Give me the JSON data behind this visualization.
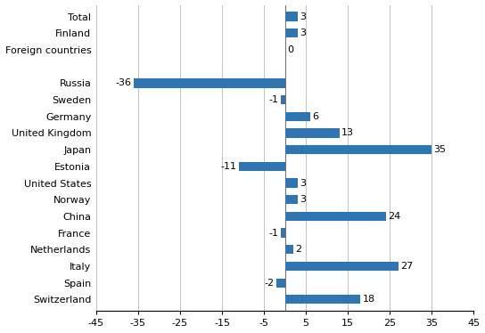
{
  "categories": [
    "Total",
    "Finland",
    "Foreign countries",
    "Russia",
    "Sweden",
    "Germany",
    "United Kingdom",
    "Japan",
    "Estonia",
    "United States",
    "Norway",
    "China",
    "France",
    "Netherlands",
    "Italy",
    "Spain",
    "Switzerland"
  ],
  "values": [
    3,
    3,
    0,
    -36,
    -1,
    6,
    13,
    35,
    -11,
    3,
    3,
    24,
    -1,
    2,
    27,
    -2,
    18
  ],
  "y_positions": [
    16,
    15,
    14,
    12,
    11,
    10,
    9,
    8,
    7,
    6,
    5,
    4,
    3,
    2,
    1,
    0,
    -1
  ],
  "bar_color": "#2E75B6",
  "xlim": [
    -45,
    45
  ],
  "xticks": [
    -45,
    -35,
    -25,
    -15,
    -5,
    5,
    15,
    25,
    35,
    45
  ],
  "xtick_labels": [
    "-45",
    "-35",
    "-25",
    "-15",
    "-5",
    "5",
    "15",
    "25",
    "35",
    "45"
  ],
  "bar_height": 0.55,
  "label_fontsize": 8,
  "tick_fontsize": 8
}
